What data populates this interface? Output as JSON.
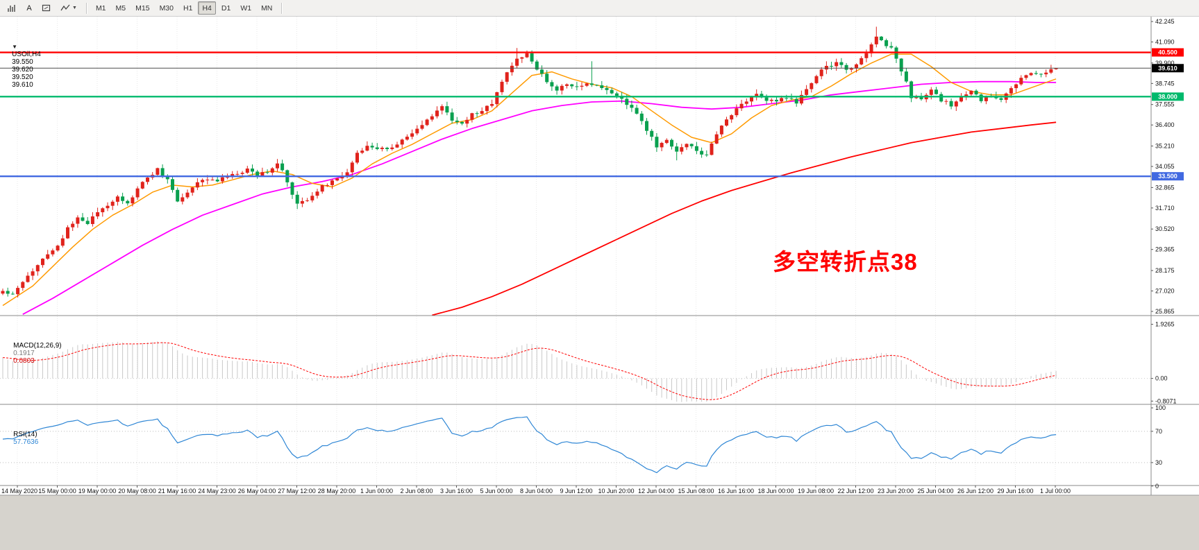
{
  "toolbar": {
    "tool_buttons": [
      {
        "id": "chart-type",
        "icon": "bar-chart-icon",
        "label": ""
      },
      {
        "id": "text-tool",
        "icon": "letter-a-icon",
        "label": "A"
      },
      {
        "id": "shape-tool",
        "icon": "rectangle-icon",
        "label": ""
      },
      {
        "id": "indicators",
        "icon": "zigzag-icon",
        "label": "",
        "has_dropdown": true
      }
    ],
    "timeframes": [
      "M1",
      "M5",
      "M15",
      "M30",
      "H1",
      "H4",
      "D1",
      "W1",
      "MN"
    ],
    "active_timeframe": "H4"
  },
  "symbol_info": {
    "collapse_icon": "▼",
    "title": "USOil,H4",
    "open": "39.550",
    "high": "39.620",
    "low": "39.520",
    "close": "39.610"
  },
  "annotation": {
    "text": "多空转折点38",
    "color": "#ff0000"
  },
  "levels": [
    {
      "label": "40.500",
      "value": 40.5,
      "color": "#ff0000"
    },
    {
      "label": "38.000",
      "value": 38.0,
      "color": "#00b96c"
    },
    {
      "label": "33.500",
      "value": 33.5,
      "color": "#4169e1"
    }
  ],
  "current_price": {
    "label": "39.610",
    "value": 39.61,
    "badge_color": "#000000"
  },
  "price_axis": {
    "ticks": [
      42.245,
      41.09,
      39.9,
      38.745,
      37.555,
      36.4,
      35.21,
      34.055,
      32.865,
      31.71,
      30.52,
      29.365,
      28.175,
      27.02,
      25.865
    ],
    "visible_max": 42.52,
    "visible_min": 25.63
  },
  "time_axis": {
    "labels": [
      "14 May 2020",
      "15 May 00:00",
      "19 May 00:00",
      "20 May 08:00",
      "21 May 16:00",
      "24 May 23:00",
      "26 May 04:00",
      "27 May 12:00",
      "28 May 20:00",
      "1 Jun 00:00",
      "2 Jun 08:00",
      "3 Jun 16:00",
      "5 Jun 00:00",
      "8 Jun 04:00",
      "9 Jun 12:00",
      "10 Jun 20:00",
      "12 Jun 04:00",
      "15 Jun 08:00",
      "16 Jun 16:00",
      "18 Jun 00:00",
      "19 Jun 08:00",
      "22 Jun 12:00",
      "23 Jun 20:00",
      "25 Jun 04:00",
      "26 Jun 12:00",
      "29 Jun 16:00",
      "1 Jul 00:00"
    ]
  },
  "macd": {
    "label": "MACD(12,26,9)",
    "value_main": "0.1917",
    "value_signal": "0.0803",
    "axis": [
      {
        "label": "1.9265",
        "value": 1.9265
      },
      {
        "label": "0.00",
        "value": 0
      },
      {
        "label": "-0.8071",
        "value": -0.8071
      }
    ]
  },
  "rsi": {
    "label": "RSI(14)",
    "value": "57.7636",
    "axis": [
      {
        "label": "100",
        "value": 100
      },
      {
        "label": "70",
        "value": 70
      },
      {
        "label": "30",
        "value": 30
      },
      {
        "label": "0",
        "value": 0
      }
    ],
    "guide_levels": [
      70,
      30
    ]
  },
  "chart_data": {
    "type": "candlestick+indicators",
    "symbol": "USOil",
    "timeframe": "H4",
    "bars": 212,
    "last_bar": {
      "o": 39.55,
      "h": 39.62,
      "l": 39.52,
      "c": 39.61
    },
    "price_waypoints": [
      [
        0,
        27.0
      ],
      [
        2,
        26.85
      ],
      [
        4,
        27.6
      ],
      [
        6,
        28.2
      ],
      [
        8,
        28.9
      ],
      [
        10,
        29.3
      ],
      [
        12,
        29.9
      ],
      [
        13,
        30.6
      ],
      [
        15,
        31.2
      ],
      [
        17,
        30.8
      ],
      [
        19,
        31.5
      ],
      [
        21,
        31.9
      ],
      [
        23,
        32.4
      ],
      [
        25,
        31.9
      ],
      [
        27,
        32.8
      ],
      [
        29,
        33.4
      ],
      [
        31,
        33.9
      ],
      [
        33,
        33.3
      ],
      [
        35,
        32.1
      ],
      [
        37,
        32.6
      ],
      [
        39,
        33.1
      ],
      [
        41,
        33.4
      ],
      [
        43,
        33.2
      ],
      [
        45,
        33.5
      ],
      [
        47,
        33.6
      ],
      [
        49,
        33.9
      ],
      [
        51,
        33.6
      ],
      [
        53,
        33.8
      ],
      [
        55,
        34.2
      ],
      [
        56,
        33.8
      ],
      [
        58,
        32.4
      ],
      [
        59,
        31.9
      ],
      [
        61,
        32.2
      ],
      [
        63,
        32.7
      ],
      [
        65,
        33.1
      ],
      [
        67,
        33.3
      ],
      [
        69,
        33.8
      ],
      [
        71,
        34.8
      ],
      [
        73,
        35.3
      ],
      [
        75,
        35.0
      ],
      [
        77,
        35.1
      ],
      [
        79,
        35.3
      ],
      [
        81,
        35.7
      ],
      [
        83,
        36.1
      ],
      [
        85,
        36.7
      ],
      [
        87,
        37.2
      ],
      [
        88,
        37.4
      ],
      [
        90,
        36.7
      ],
      [
        92,
        36.4
      ],
      [
        94,
        37.0
      ],
      [
        96,
        37.2
      ],
      [
        98,
        37.6
      ],
      [
        100,
        38.9
      ],
      [
        102,
        39.7
      ],
      [
        103,
        40.1
      ],
      [
        105,
        40.4
      ],
      [
        107,
        39.6
      ],
      [
        109,
        38.8
      ],
      [
        111,
        38.4
      ],
      [
        113,
        38.7
      ],
      [
        115,
        38.5
      ],
      [
        117,
        38.7
      ],
      [
        119,
        38.6
      ],
      [
        121,
        38.4
      ],
      [
        123,
        38.0
      ],
      [
        125,
        37.6
      ],
      [
        127,
        37.1
      ],
      [
        129,
        36.1
      ],
      [
        131,
        35.2
      ],
      [
        133,
        35.5
      ],
      [
        135,
        34.9
      ],
      [
        137,
        35.4
      ],
      [
        139,
        34.9
      ],
      [
        141,
        34.7
      ],
      [
        143,
        35.9
      ],
      [
        145,
        36.8
      ],
      [
        147,
        37.3
      ],
      [
        149,
        37.8
      ],
      [
        151,
        38.2
      ],
      [
        153,
        37.8
      ],
      [
        155,
        37.7
      ],
      [
        157,
        38.0
      ],
      [
        159,
        37.6
      ],
      [
        161,
        38.4
      ],
      [
        163,
        39.2
      ],
      [
        165,
        39.7
      ],
      [
        167,
        39.9
      ],
      [
        169,
        39.5
      ],
      [
        171,
        39.8
      ],
      [
        173,
        40.5
      ],
      [
        175,
        41.4
      ],
      [
        176,
        41.2
      ],
      [
        178,
        40.7
      ],
      [
        179,
        40.1
      ],
      [
        181,
        38.8
      ],
      [
        182,
        38.0
      ],
      [
        184,
        37.9
      ],
      [
        186,
        38.3
      ],
      [
        188,
        37.8
      ],
      [
        190,
        37.5
      ],
      [
        192,
        38.0
      ],
      [
        194,
        38.3
      ],
      [
        196,
        37.8
      ],
      [
        198,
        38.1
      ],
      [
        200,
        37.9
      ],
      [
        202,
        38.4
      ],
      [
        204,
        39.0
      ],
      [
        206,
        39.4
      ],
      [
        208,
        39.2
      ],
      [
        210,
        39.55
      ],
      [
        211,
        39.61
      ]
    ],
    "wick_spikes": [
      {
        "bar": 59,
        "low": 31.65
      },
      {
        "bar": 103,
        "high": 40.75
      },
      {
        "bar": 118,
        "high": 40.0
      },
      {
        "bar": 135,
        "low": 34.4
      },
      {
        "bar": 175,
        "high": 41.95
      }
    ],
    "ma_fast_waypoints": [
      [
        0,
        26.2
      ],
      [
        6,
        27.3
      ],
      [
        10,
        28.4
      ],
      [
        14,
        29.5
      ],
      [
        18,
        30.5
      ],
      [
        22,
        31.3
      ],
      [
        26,
        31.9
      ],
      [
        30,
        32.6
      ],
      [
        34,
        33.0
      ],
      [
        38,
        32.9
      ],
      [
        42,
        33.0
      ],
      [
        46,
        33.3
      ],
      [
        50,
        33.6
      ],
      [
        54,
        33.8
      ],
      [
        58,
        33.6
      ],
      [
        62,
        33.1
      ],
      [
        66,
        32.9
      ],
      [
        70,
        33.4
      ],
      [
        74,
        34.2
      ],
      [
        78,
        34.8
      ],
      [
        82,
        35.3
      ],
      [
        86,
        35.9
      ],
      [
        90,
        36.5
      ],
      [
        94,
        36.7
      ],
      [
        98,
        37.2
      ],
      [
        102,
        38.2
      ],
      [
        106,
        39.2
      ],
      [
        110,
        39.4
      ],
      [
        114,
        39.0
      ],
      [
        118,
        38.7
      ],
      [
        122,
        38.5
      ],
      [
        126,
        38.0
      ],
      [
        130,
        37.2
      ],
      [
        134,
        36.4
      ],
      [
        138,
        35.7
      ],
      [
        142,
        35.4
      ],
      [
        146,
        35.9
      ],
      [
        150,
        36.8
      ],
      [
        154,
        37.5
      ],
      [
        158,
        37.8
      ],
      [
        162,
        38.0
      ],
      [
        166,
        38.6
      ],
      [
        170,
        39.3
      ],
      [
        174,
        39.9
      ],
      [
        178,
        40.4
      ],
      [
        182,
        40.4
      ],
      [
        186,
        39.7
      ],
      [
        190,
        38.8
      ],
      [
        194,
        38.3
      ],
      [
        198,
        38.1
      ],
      [
        202,
        38.1
      ],
      [
        206,
        38.5
      ],
      [
        211,
        39.0
      ]
    ],
    "ma_mid_waypoints": [
      [
        4,
        25.7
      ],
      [
        10,
        26.6
      ],
      [
        16,
        27.6
      ],
      [
        22,
        28.6
      ],
      [
        28,
        29.6
      ],
      [
        34,
        30.5
      ],
      [
        40,
        31.3
      ],
      [
        46,
        31.9
      ],
      [
        52,
        32.5
      ],
      [
        58,
        32.9
      ],
      [
        64,
        33.2
      ],
      [
        70,
        33.6
      ],
      [
        76,
        34.2
      ],
      [
        82,
        34.9
      ],
      [
        88,
        35.6
      ],
      [
        94,
        36.2
      ],
      [
        100,
        36.7
      ],
      [
        106,
        37.2
      ],
      [
        112,
        37.5
      ],
      [
        118,
        37.7
      ],
      [
        124,
        37.75
      ],
      [
        130,
        37.6
      ],
      [
        136,
        37.4
      ],
      [
        142,
        37.3
      ],
      [
        148,
        37.4
      ],
      [
        154,
        37.6
      ],
      [
        160,
        37.8
      ],
      [
        166,
        38.1
      ],
      [
        172,
        38.3
      ],
      [
        178,
        38.5
      ],
      [
        184,
        38.7
      ],
      [
        190,
        38.8
      ],
      [
        196,
        38.85
      ],
      [
        202,
        38.85
      ],
      [
        207,
        38.8
      ],
      [
        211,
        38.8
      ]
    ],
    "ma_slow_waypoints": [
      [
        86,
        25.65
      ],
      [
        92,
        26.1
      ],
      [
        98,
        26.7
      ],
      [
        104,
        27.4
      ],
      [
        110,
        28.2
      ],
      [
        116,
        29.0
      ],
      [
        122,
        29.8
      ],
      [
        128,
        30.6
      ],
      [
        134,
        31.4
      ],
      [
        140,
        32.1
      ],
      [
        146,
        32.7
      ],
      [
        152,
        33.2
      ],
      [
        158,
        33.7
      ],
      [
        164,
        34.15
      ],
      [
        170,
        34.6
      ],
      [
        176,
        35.0
      ],
      [
        182,
        35.4
      ],
      [
        188,
        35.7
      ],
      [
        194,
        36.0
      ],
      [
        200,
        36.2
      ],
      [
        206,
        36.4
      ],
      [
        211,
        36.55
      ]
    ],
    "colors": {
      "up": "#e0231c",
      "down": "#0aa04f",
      "ma_fast": "#ff9a00",
      "ma_mid": "#ff00ff",
      "ma_slow": "#ff0000",
      "macd_hist": "#c9c9c9",
      "macd_signal": "#ff0000",
      "rsi_line": "#2e86d5",
      "bid_line": "#4d4d4d",
      "grid": "#e9e9e9"
    }
  }
}
